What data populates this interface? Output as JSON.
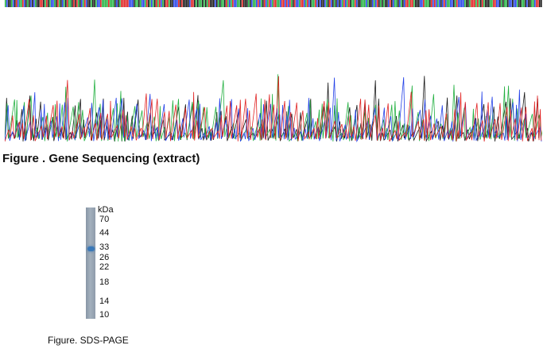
{
  "figure1": {
    "caption": "Figure . Gene Sequencing (extract)",
    "trace_colors": [
      "#1a1a1a",
      "#22b040",
      "#2442e8",
      "#e02222"
    ]
  },
  "figure2": {
    "caption": "Figure. SDS-PAGE",
    "unit": "kDa",
    "markers": [
      "70",
      "44",
      "33",
      "26",
      "22",
      "18",
      "14",
      "10"
    ],
    "band_color": "#3a78b8"
  }
}
